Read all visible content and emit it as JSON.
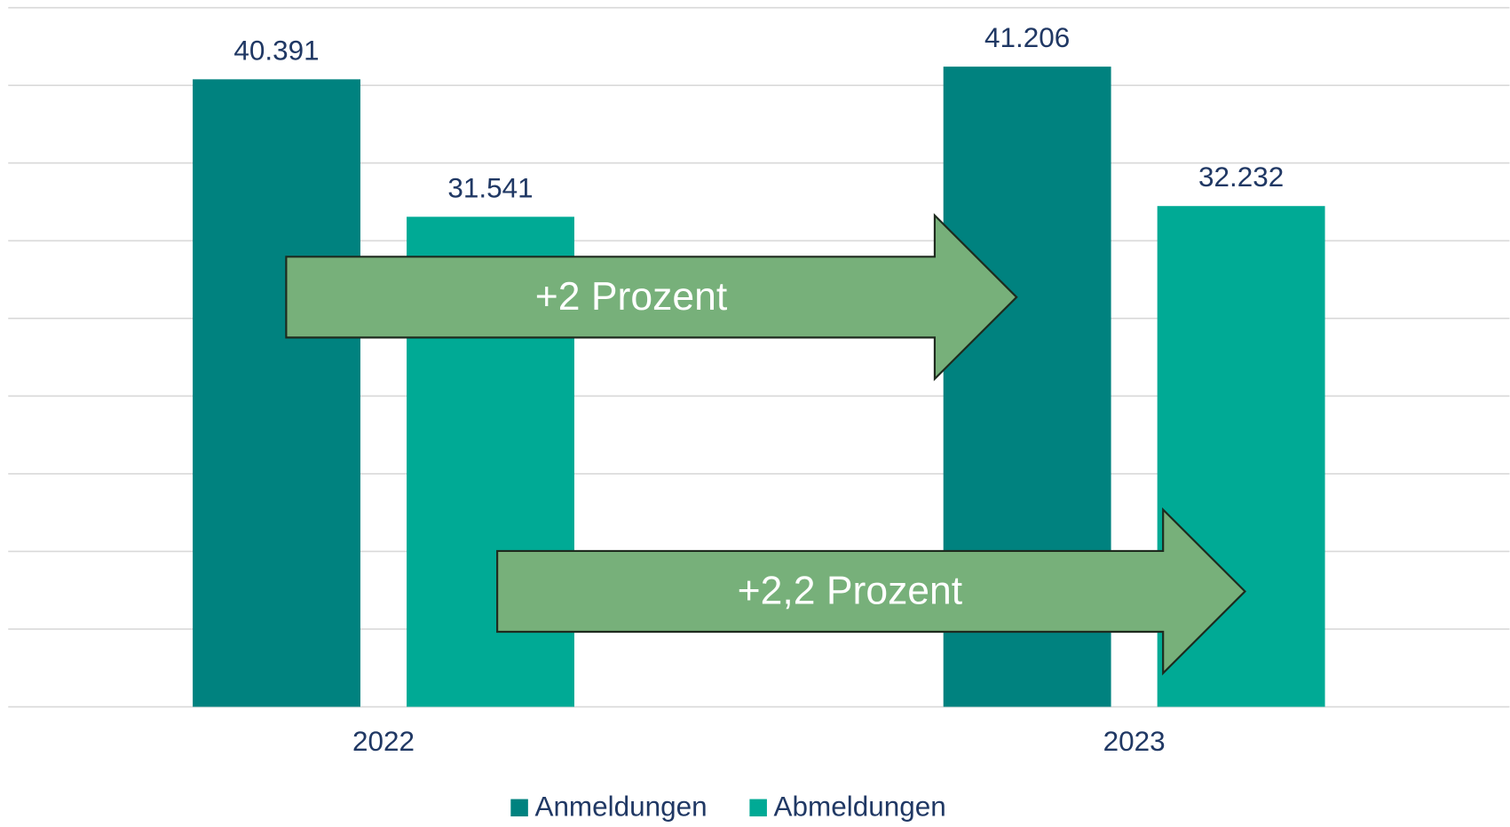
{
  "chart_data": {
    "type": "bar",
    "categories": [
      "2022",
      "2023"
    ],
    "series": [
      {
        "name": "Anmeldungen",
        "color": "#00827f",
        "values": [
          40391,
          41206
        ],
        "value_labels": [
          "40.391",
          "41.206"
        ]
      },
      {
        "name": "Abmeldungen",
        "color": "#00aa95",
        "values": [
          31541,
          32232
        ],
        "value_labels": [
          "31.541",
          "32.232"
        ]
      }
    ],
    "ylim": [
      0,
      45000
    ],
    "yticks": [
      0,
      5000,
      10000,
      15000,
      20000,
      25000,
      30000,
      35000,
      40000,
      45000
    ],
    "grid": true,
    "legend": "bottom",
    "annotations": [
      "+2 Prozent",
      "+2,2 Prozent"
    ]
  }
}
